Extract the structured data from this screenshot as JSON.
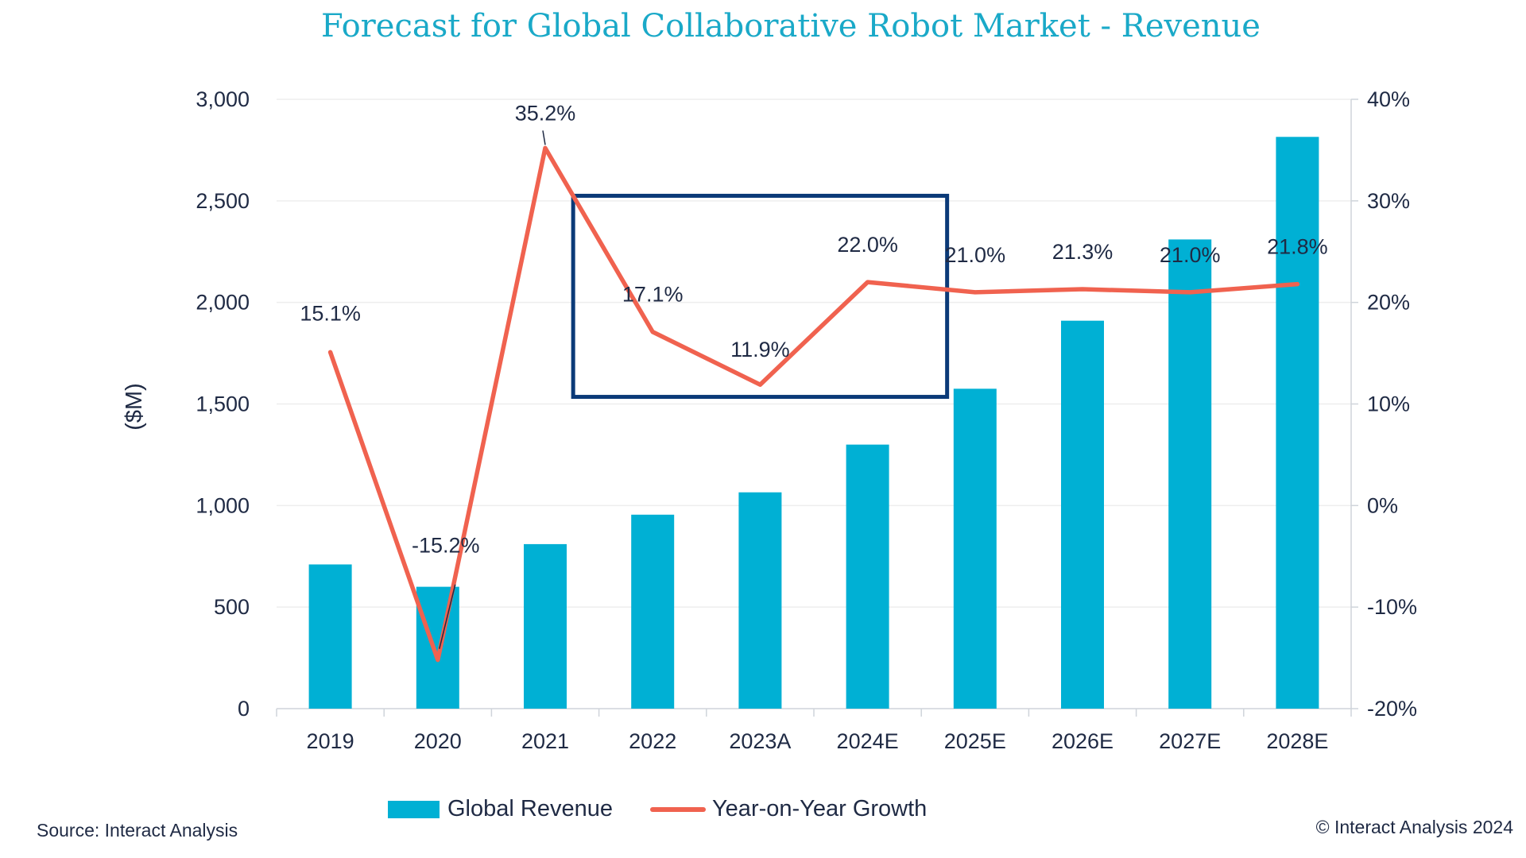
{
  "title": "Forecast for Global Collaborative Robot Market - Revenue",
  "source": "Source: Interact Analysis",
  "copyright": "© Interact Analysis 2024",
  "colors": {
    "title": "#1aa9c8",
    "bar": "#00b0d4",
    "line": "#f0624f",
    "highlight_box": "#0b3a78",
    "text": "#1f2a44"
  },
  "chart_data": {
    "type": "bar",
    "title": "Forecast for Global Collaborative Robot Market - Revenue",
    "categories": [
      "2019",
      "2020",
      "2021",
      "2022",
      "2023A",
      "2024E",
      "2025E",
      "2026E",
      "2027E",
      "2028E"
    ],
    "ylabel": "($M)",
    "ylim": [
      0,
      3000
    ],
    "y_ticks": [
      "0",
      "500",
      "1,000",
      "1,500",
      "2,000",
      "2,500",
      "3,000"
    ],
    "y2lim": [
      -20,
      40
    ],
    "y2_ticks": [
      "-20%",
      "-10%",
      "0%",
      "10%",
      "20%",
      "30%",
      "40%"
    ],
    "grid": true,
    "legend_position": "bottom",
    "series": [
      {
        "name": "Global Revenue",
        "type": "bar",
        "axis": "left",
        "values": [
          710,
          600,
          810,
          955,
          1065,
          1300,
          1575,
          1910,
          2310,
          2815
        ]
      },
      {
        "name": "Year-on-Year Growth",
        "type": "line",
        "axis": "right",
        "values": [
          15.1,
          -15.2,
          35.2,
          17.1,
          11.9,
          22.0,
          21.0,
          21.3,
          21.0,
          21.8
        ],
        "labels": [
          "15.1%",
          "-15.2%",
          "35.2%",
          "17.1%",
          "11.9%",
          "22.0%",
          "21.0%",
          "21.3%",
          "21.0%",
          "21.8%"
        ]
      }
    ],
    "annotations": [
      {
        "type": "highlight-box",
        "from_category": "2022",
        "to_category": "2024E"
      }
    ]
  }
}
